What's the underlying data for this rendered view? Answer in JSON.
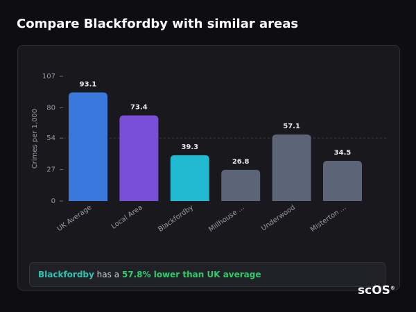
{
  "page": {
    "title": "Compare Blackfordby with similar areas",
    "callout": {
      "area": "Blackfordby",
      "middle": "has a",
      "highlight": "57.8% lower than UK average"
    },
    "logo": "scOS",
    "logo_mark": "®"
  },
  "chart_data": {
    "type": "bar",
    "y_label": "Crimes per 1,000",
    "categories": [
      "UK Average",
      "Local Area",
      "Blackfordby",
      "Millhouse ...",
      "Underwood",
      "Misterton ..."
    ],
    "values": [
      93.1,
      73.4,
      39.3,
      26.8,
      57.1,
      34.5
    ],
    "colors": [
      "#3a78de",
      "#7a4fd8",
      "#22b9d2",
      "#5b6577",
      "#5b6577",
      "#5b6577"
    ],
    "ylim": [
      0,
      107
    ],
    "yticks": [
      0,
      27,
      54,
      80,
      107
    ],
    "reference_line": 54
  }
}
